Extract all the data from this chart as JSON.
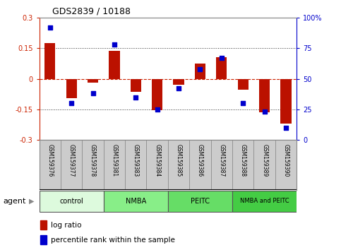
{
  "title": "GDS2839 / 10188",
  "samples": [
    "GSM159376",
    "GSM159377",
    "GSM159378",
    "GSM159381",
    "GSM159383",
    "GSM159384",
    "GSM159385",
    "GSM159386",
    "GSM159387",
    "GSM159388",
    "GSM159389",
    "GSM159390"
  ],
  "log_ratio": [
    0.175,
    -0.095,
    -0.02,
    0.135,
    -0.065,
    -0.155,
    -0.03,
    0.075,
    0.105,
    -0.055,
    -0.165,
    -0.22
  ],
  "percentile_rank": [
    92,
    30,
    38,
    78,
    35,
    25,
    42,
    58,
    67,
    30,
    23,
    10
  ],
  "groups": [
    {
      "label": "control",
      "start": 0,
      "end": 3,
      "color": "#ddfadd"
    },
    {
      "label": "NMBA",
      "start": 3,
      "end": 6,
      "color": "#88ee88"
    },
    {
      "label": "PEITC",
      "start": 6,
      "end": 9,
      "color": "#66dd66"
    },
    {
      "label": "NMBA and PEITC",
      "start": 9,
      "end": 12,
      "color": "#44cc44"
    }
  ],
  "ylim_left": [
    -0.3,
    0.3
  ],
  "ylim_right": [
    0,
    100
  ],
  "yticks_left": [
    -0.3,
    -0.15,
    0,
    0.15,
    0.3
  ],
  "yticks_right": [
    0,
    25,
    50,
    75,
    100
  ],
  "bar_color": "#bb1100",
  "dot_color": "#0000cc",
  "zero_line_color": "#cc2200",
  "dotted_line_color": "#333333",
  "bg_color": "#ffffff",
  "agent_label": "agent",
  "legend_bar": "log ratio",
  "legend_dot": "percentile rank within the sample"
}
